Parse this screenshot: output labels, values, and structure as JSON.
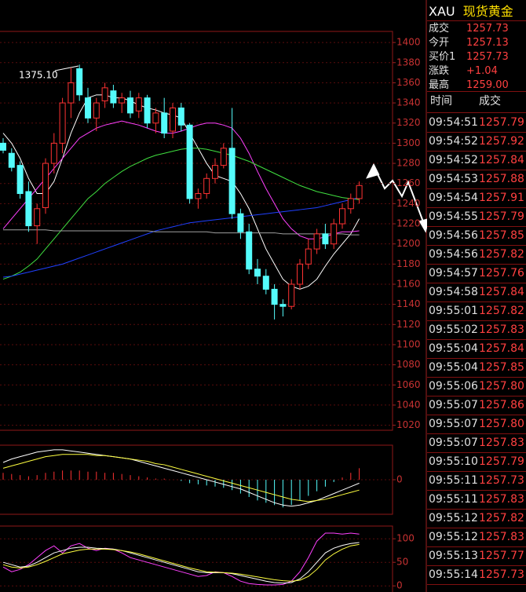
{
  "chart_data": [
    {
      "type": "candlestick",
      "annotation": "1375.10",
      "open": [
        1300,
        1290,
        1278,
        1252,
        1218,
        1236,
        1280,
        1300,
        1340,
        1374,
        1345,
        1325,
        1342,
        1352,
        1340,
        1345,
        1332,
        1345,
        1320,
        1330,
        1312,
        1335,
        1318,
        1245,
        1250,
        1265,
        1278,
        1295,
        1230,
        1212,
        1175,
        1168,
        1155,
        1140,
        1138,
        1160,
        1180,
        1195,
        1210,
        1200,
        1220,
        1235,
        1245
      ],
      "high": [
        1305,
        1295,
        1282,
        1262,
        1240,
        1285,
        1310,
        1345,
        1375.1,
        1378,
        1355,
        1345,
        1360,
        1358,
        1350,
        1352,
        1350,
        1348,
        1335,
        1345,
        1340,
        1340,
        1320,
        1255,
        1270,
        1285,
        1300,
        1335,
        1235,
        1220,
        1185,
        1175,
        1160,
        1145,
        1165,
        1185,
        1205,
        1215,
        1220,
        1225,
        1240,
        1250,
        1262
      ],
      "low": [
        1290,
        1272,
        1245,
        1212,
        1200,
        1230,
        1270,
        1290,
        1325,
        1342,
        1320,
        1312,
        1335,
        1335,
        1330,
        1325,
        1325,
        1315,
        1310,
        1305,
        1305,
        1312,
        1240,
        1235,
        1245,
        1260,
        1275,
        1225,
        1205,
        1170,
        1160,
        1150,
        1125,
        1128,
        1135,
        1155,
        1175,
        1190,
        1195,
        1195,
        1215,
        1230,
        1240
      ],
      "close": [
        1293,
        1276,
        1250,
        1218,
        1235,
        1280,
        1300,
        1340,
        1360,
        1348,
        1325,
        1340,
        1355,
        1340,
        1345,
        1330,
        1345,
        1320,
        1330,
        1310,
        1335,
        1318,
        1245,
        1250,
        1265,
        1278,
        1295,
        1230,
        1212,
        1175,
        1168,
        1155,
        1140,
        1138,
        1160,
        1180,
        1195,
        1210,
        1200,
        1220,
        1235,
        1245,
        1258
      ],
      "series": [
        {
          "color": "#ffffff",
          "values": [
            1310,
            1300,
            1285,
            1265,
            1250,
            1250,
            1262,
            1285,
            1310,
            1330,
            1345,
            1348,
            1348,
            1345,
            1345,
            1342,
            1338,
            1335,
            1333,
            1330,
            1328,
            1325,
            1310,
            1295,
            1280,
            1268,
            1265,
            1262,
            1250,
            1235,
            1215,
            1195,
            1180,
            1165,
            1158,
            1155,
            1158,
            1165,
            1178,
            1190,
            1200,
            1210,
            1225
          ]
        },
        {
          "color": "#ff40ff",
          "values": [
            1215,
            1225,
            1235,
            1245,
            1255,
            1265,
            1275,
            1285,
            1295,
            1305,
            1310,
            1315,
            1318,
            1320,
            1322,
            1320,
            1318,
            1315,
            1312,
            1310,
            1310,
            1312,
            1315,
            1318,
            1320,
            1320,
            1318,
            1315,
            1305,
            1290,
            1272,
            1255,
            1240,
            1225,
            1215,
            1208,
            1205,
            1205,
            1207,
            1210,
            1212,
            1212,
            1213
          ]
        },
        {
          "color": "#40e040",
          "values": [
            1165,
            1168,
            1172,
            1178,
            1185,
            1195,
            1205,
            1215,
            1225,
            1235,
            1245,
            1252,
            1260,
            1266,
            1272,
            1277,
            1281,
            1285,
            1288,
            1290,
            1292,
            1294,
            1295,
            1295,
            1294,
            1292,
            1290,
            1288,
            1285,
            1282,
            1278,
            1274,
            1270,
            1266,
            1262,
            1258,
            1255,
            1252,
            1250,
            1248,
            1246,
            1245,
            1244
          ]
        },
        {
          "color": "#2040ff",
          "values": [
            1167,
            1168,
            1170,
            1172,
            1174,
            1176,
            1178,
            1180,
            1183,
            1186,
            1189,
            1192,
            1195,
            1198,
            1201,
            1204,
            1207,
            1210,
            1213,
            1215,
            1217,
            1219,
            1221,
            1222,
            1223,
            1224,
            1225,
            1226,
            1227,
            1228,
            1229,
            1230,
            1231,
            1232,
            1233,
            1234,
            1235,
            1236,
            1238,
            1240,
            1242,
            1244,
            1246
          ]
        },
        {
          "color": "#a0a0a0",
          "values": [
            1214,
            1214,
            1214,
            1214,
            1214,
            1214,
            1213,
            1213,
            1213,
            1213,
            1213,
            1213,
            1213,
            1213,
            1213,
            1213,
            1213,
            1213,
            1212,
            1212,
            1212,
            1212,
            1212,
            1212,
            1212,
            1211,
            1211,
            1211,
            1211,
            1211,
            1211,
            1211,
            1211,
            1210,
            1210,
            1210,
            1210,
            1210,
            1210,
            1210,
            1210,
            1209,
            1209
          ]
        }
      ],
      "up_color": "#ff3232",
      "down_color": "#54fcfc",
      "ylim": [
        1015,
        1411
      ],
      "yticks": [
        1020,
        1040,
        1060,
        1080,
        1100,
        1120,
        1140,
        1160,
        1180,
        1200,
        1220,
        1240,
        1260,
        1280,
        1300,
        1320,
        1340,
        1360,
        1380,
        1400
      ]
    },
    {
      "type": "combo",
      "values": [
        6,
        5,
        4,
        3,
        4,
        6,
        7,
        8,
        8,
        8,
        7,
        7,
        6,
        6,
        5,
        4,
        3,
        2,
        1,
        1,
        0,
        -1,
        -3,
        -4,
        -5,
        -6,
        -7,
        -9,
        -12,
        -15,
        -18,
        -20,
        -22,
        -24,
        -22,
        -18,
        -14,
        -10,
        -6,
        -2,
        2,
        6,
        10
      ],
      "up_color": "#ff3232",
      "down_color": "#54fcfc",
      "series": [
        {
          "color": "#ffffff",
          "values": [
            15,
            18,
            20,
            22,
            24,
            25,
            26,
            26,
            25,
            24,
            23,
            22,
            21,
            20,
            19,
            18,
            16,
            14,
            12,
            10,
            8,
            6,
            4,
            2,
            0,
            -2,
            -4,
            -6,
            -8,
            -11,
            -14,
            -17,
            -20,
            -22,
            -23,
            -22,
            -20,
            -18,
            -15,
            -12,
            -9,
            -6,
            -3
          ]
        },
        {
          "color": "#ffff40",
          "values": [
            10,
            12,
            14,
            16,
            18,
            20,
            21,
            22,
            22,
            22,
            22,
            21,
            21,
            20,
            19,
            18,
            17,
            16,
            14,
            13,
            11,
            9,
            7,
            5,
            3,
            1,
            -1,
            -3,
            -5,
            -7,
            -9,
            -11,
            -13,
            -15,
            -17,
            -18,
            -19,
            -18,
            -17,
            -15,
            -13,
            -11,
            -9
          ]
        }
      ],
      "ylim": [
        -30,
        30
      ],
      "yticks": [
        0
      ]
    },
    {
      "type": "line",
      "series": [
        {
          "color": "#ff40ff",
          "values": [
            40,
            30,
            35,
            45,
            60,
            75,
            85,
            70,
            85,
            90,
            80,
            75,
            80,
            78,
            70,
            60,
            55,
            50,
            45,
            40,
            35,
            30,
            25,
            20,
            22,
            30,
            28,
            20,
            10,
            5,
            3,
            2,
            2,
            3,
            10,
            30,
            60,
            95,
            112,
            112,
            110,
            112,
            110
          ]
        },
        {
          "color": "#ffffff",
          "values": [
            50,
            45,
            40,
            42,
            50,
            60,
            70,
            75,
            80,
            82,
            82,
            80,
            79,
            78,
            75,
            70,
            65,
            60,
            55,
            50,
            45,
            40,
            35,
            30,
            28,
            28,
            28,
            26,
            22,
            18,
            14,
            10,
            7,
            6,
            7,
            15,
            30,
            50,
            70,
            80,
            86,
            90,
            92
          ]
        },
        {
          "color": "#ffff40",
          "values": [
            45,
            40,
            38,
            40,
            45,
            52,
            60,
            68,
            72,
            76,
            78,
            78,
            78,
            77,
            75,
            72,
            68,
            63,
            58,
            53,
            48,
            43,
            38,
            34,
            30,
            29,
            28,
            27,
            25,
            22,
            19,
            16,
            13,
            11,
            10,
            12,
            20,
            35,
            55,
            68,
            78,
            85,
            88
          ]
        }
      ],
      "ylim": [
        -13,
        127
      ],
      "yticks": [
        0,
        50,
        100
      ]
    }
  ],
  "quote": {
    "symbol": "XAU",
    "name": "现货黄金",
    "rows": [
      {
        "label": "成交",
        "value": "1257.73"
      },
      {
        "label": "今开",
        "value": "1257.13"
      },
      {
        "label": "买价1",
        "value": "1257.73"
      },
      {
        "label": "涨跌",
        "value": "+1.04"
      },
      {
        "label": "最高",
        "value": "1259.00"
      }
    ]
  },
  "trades": {
    "headers": [
      "时间",
      "成交"
    ],
    "rows": [
      [
        "09:54:51",
        "1257.79"
      ],
      [
        "09:54:52",
        "1257.92"
      ],
      [
        "09:54:52",
        "1257.84"
      ],
      [
        "09:54:53",
        "1257.88"
      ],
      [
        "09:54:54",
        "1257.91"
      ],
      [
        "09:54:55",
        "1257.79"
      ],
      [
        "09:54:56",
        "1257.85"
      ],
      [
        "09:54:56",
        "1257.82"
      ],
      [
        "09:54:57",
        "1257.76"
      ],
      [
        "09:54:58",
        "1257.84"
      ],
      [
        "09:55:01",
        "1257.82"
      ],
      [
        "09:55:02",
        "1257.83"
      ],
      [
        "09:55:04",
        "1257.84"
      ],
      [
        "09:55:04",
        "1257.85"
      ],
      [
        "09:55:06",
        "1257.80"
      ],
      [
        "09:55:07",
        "1257.86"
      ],
      [
        "09:55:07",
        "1257.80"
      ],
      [
        "09:55:07",
        "1257.83"
      ],
      [
        "09:55:10",
        "1257.79"
      ],
      [
        "09:55:11",
        "1257.73"
      ],
      [
        "09:55:11",
        "1257.83"
      ],
      [
        "09:55:12",
        "1257.82"
      ],
      [
        "09:55:12",
        "1257.83"
      ],
      [
        "09:55:13",
        "1257.77"
      ],
      [
        "09:55:14",
        "1257.73"
      ]
    ]
  }
}
